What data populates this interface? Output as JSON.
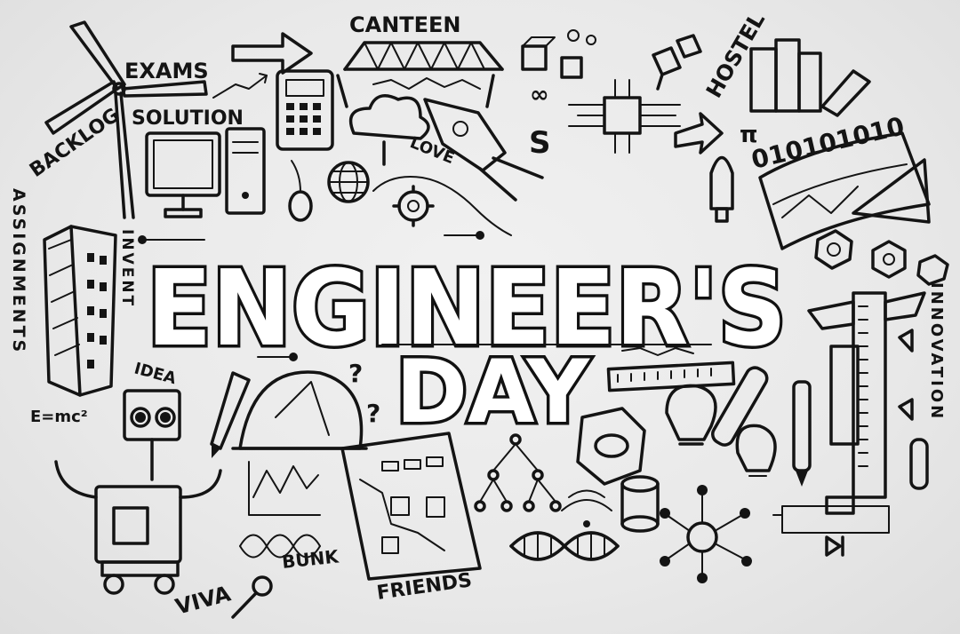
{
  "title": {
    "line1": "ENGINEER'S",
    "line2": "DAY"
  },
  "words": {
    "canteen": "CANTEEN",
    "exams": "EXAMS",
    "solution": "SOLUTION",
    "backlog": "BACKLOG",
    "hostel": "HOSTEL",
    "love": "LOVE",
    "binary": "010101010",
    "pi": "π",
    "assignments": "ASSIGNMENTS",
    "invent": "INVENT",
    "idea": "IDEA",
    "equation": "E=mc²",
    "innovation": "INNOVATION",
    "viva": "VIVA",
    "bunk": "BUNK",
    "friends": "FRIENDS"
  },
  "colors": {
    "ink": "#141414",
    "paper": "#ececec"
  }
}
